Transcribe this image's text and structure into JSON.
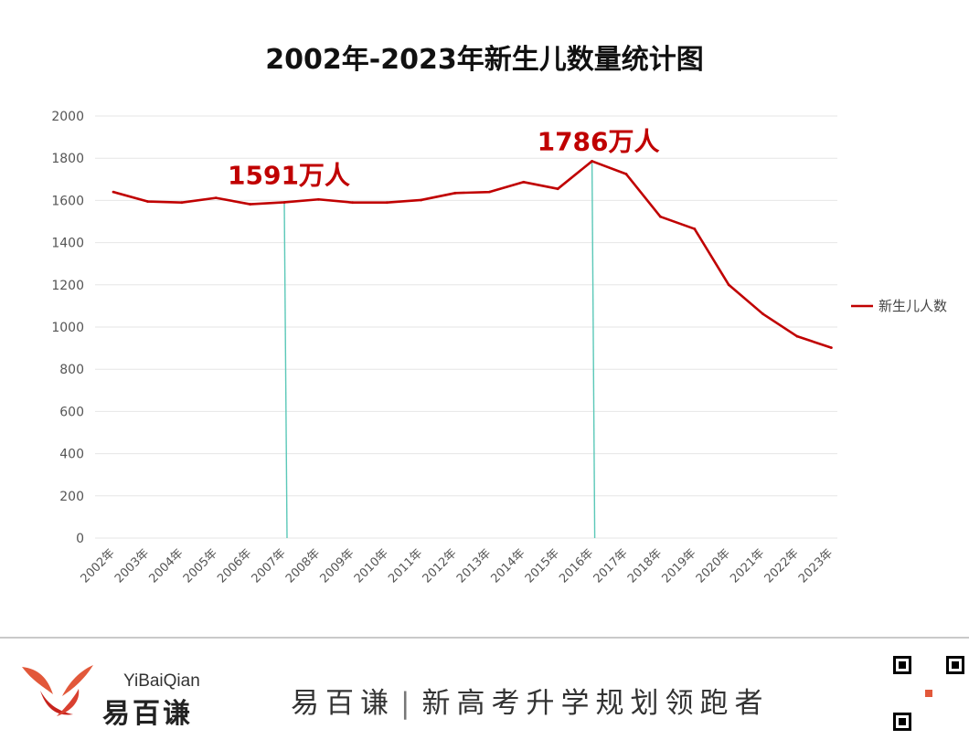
{
  "title": "2002年-2023年新生儿数量统计图",
  "colors": {
    "series": "#c00000",
    "marker_line": "#5bc8b8",
    "grid": "#e6e6e6",
    "axis_text": "#555555",
    "annotation": "#c00000",
    "watermark": "#f5d8d8"
  },
  "chart_data": {
    "type": "line",
    "title": "2002年-2023年新生儿数量统计图",
    "xlabel": "",
    "ylabel": "",
    "ylim": [
      0,
      2000
    ],
    "yticks": [
      0,
      200,
      400,
      600,
      800,
      1000,
      1200,
      1400,
      1600,
      1800,
      2000
    ],
    "grid": true,
    "legend_position": "right",
    "categories": [
      "2002年",
      "2003年",
      "2004年",
      "2005年",
      "2006年",
      "2007年",
      "2008年",
      "2009年",
      "2010年",
      "2011年",
      "2012年",
      "2013年",
      "2014年",
      "2015年",
      "2016年",
      "2017年",
      "2018年",
      "2019年",
      "2020年",
      "2021年",
      "2022年",
      "2023年"
    ],
    "series": [
      {
        "name": "新生儿人数",
        "values": [
          1640,
          1595,
          1590,
          1612,
          1582,
          1591,
          1605,
          1590,
          1590,
          1602,
          1635,
          1640,
          1687,
          1655,
          1786,
          1725,
          1523,
          1465,
          1200,
          1062,
          956,
          902
        ]
      }
    ],
    "annotations": [
      {
        "category": "2007年",
        "value": 1591,
        "label": "1591万人"
      },
      {
        "category": "2016年",
        "value": 1786,
        "label": "1786万人"
      }
    ]
  },
  "footer": {
    "logo_latin": "YiBaiQian",
    "logo_cjk": "易百谦",
    "slogan_brand": "易百谦",
    "slogan_separator": "|",
    "slogan_text": "新高考升学规划领跑者"
  }
}
